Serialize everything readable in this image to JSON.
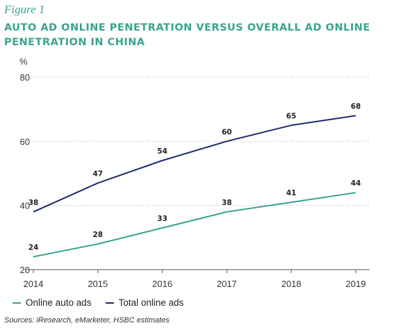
{
  "figure_label": "Figure 1",
  "chart_data": {
    "type": "line",
    "title": "AUTO AD ONLINE PENETRATION VERSUS OVERALL AD ONLINE PENETRATION IN CHINA",
    "ylabel": "%",
    "xlabel": "",
    "x": [
      "2014",
      "2015",
      "2016",
      "2017",
      "2018",
      "2019"
    ],
    "ylim": [
      20,
      80
    ],
    "yticks": [
      20,
      40,
      60,
      80
    ],
    "grid": "horizontal dotted",
    "legend_position": "bottom-left",
    "series": [
      {
        "name": "Online auto ads",
        "color": "#3aa38f",
        "values": [
          24,
          28,
          33,
          38,
          41,
          44
        ]
      },
      {
        "name": "Total online ads",
        "color": "#1c2a6b",
        "values": [
          38,
          47,
          54,
          60,
          65,
          68
        ]
      }
    ]
  },
  "source": "Sources: iResearch, eMarketer, HSBC estimates"
}
